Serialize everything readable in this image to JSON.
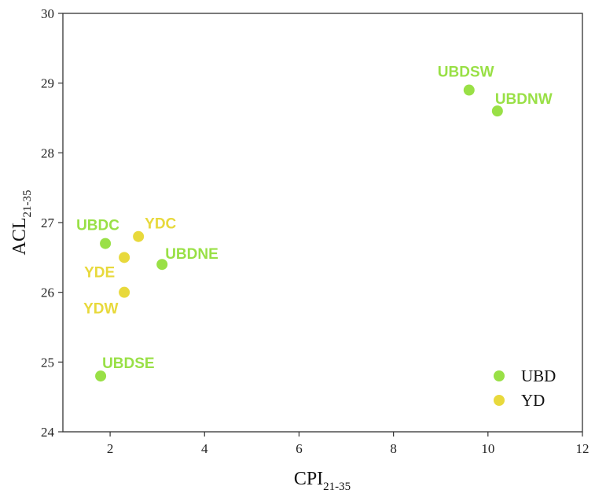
{
  "chart_data": {
    "type": "scatter",
    "xlabel": {
      "main": "CPI",
      "sub": "21-35"
    },
    "ylabel": {
      "main": "ACL",
      "sub": "21-35"
    },
    "xlim": [
      1,
      12
    ],
    "ylim": [
      24,
      30
    ],
    "xticks": [
      2,
      4,
      6,
      8,
      10,
      12
    ],
    "yticks": [
      24,
      25,
      26,
      27,
      28,
      29,
      30
    ],
    "grid": false,
    "legend_position": "bottom-right",
    "series": [
      {
        "name": "UBD",
        "color": "#99e046",
        "points": [
          {
            "label": "UBDSW",
            "x": 9.6,
            "y": 28.9
          },
          {
            "label": "UBDNW",
            "x": 10.2,
            "y": 28.6
          },
          {
            "label": "UBDC",
            "x": 1.9,
            "y": 26.7
          },
          {
            "label": "UBDNE",
            "x": 3.1,
            "y": 26.4
          },
          {
            "label": "UBDSE",
            "x": 1.8,
            "y": 24.8
          }
        ]
      },
      {
        "name": "YD",
        "color": "#e8d93c",
        "points": [
          {
            "label": "YDC",
            "x": 2.6,
            "y": 26.8
          },
          {
            "label": "YDE",
            "x": 2.3,
            "y": 26.5
          },
          {
            "label": "YDW",
            "x": 2.3,
            "y": 26.0
          }
        ]
      }
    ]
  }
}
